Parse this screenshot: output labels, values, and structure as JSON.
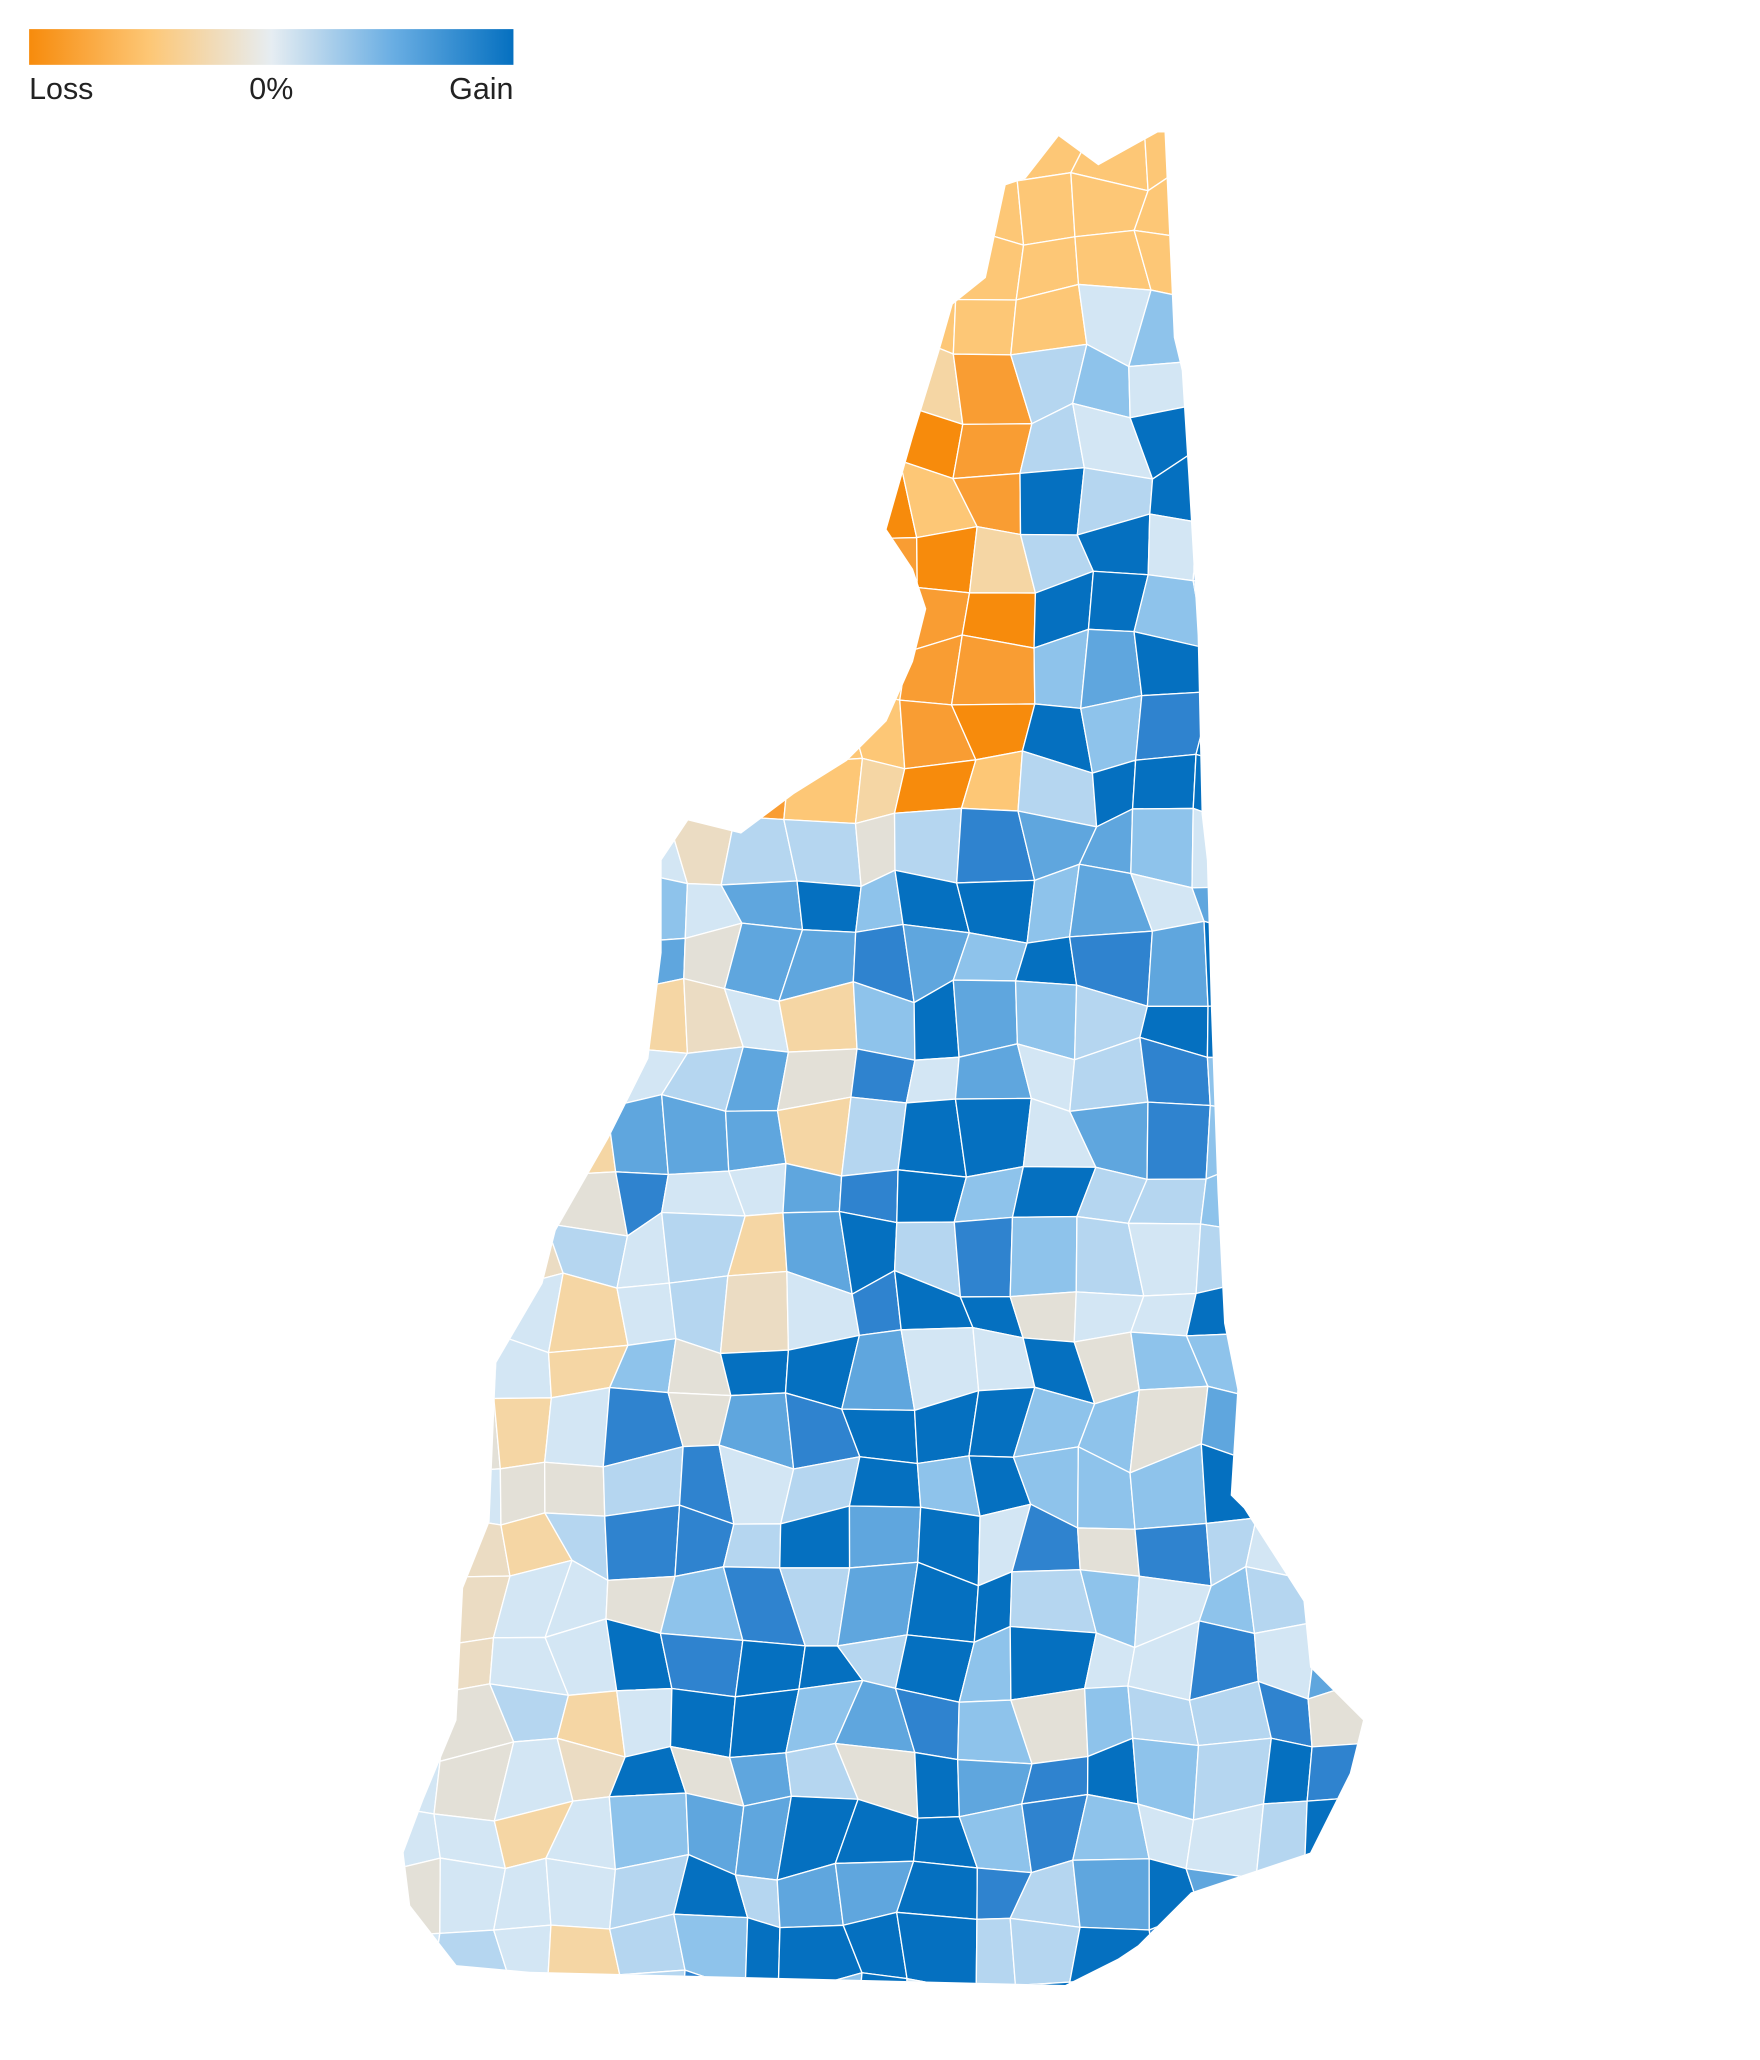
{
  "legend": {
    "low_label": "Loss",
    "mid_label": "0%",
    "high_label": "Gain"
  }
}
